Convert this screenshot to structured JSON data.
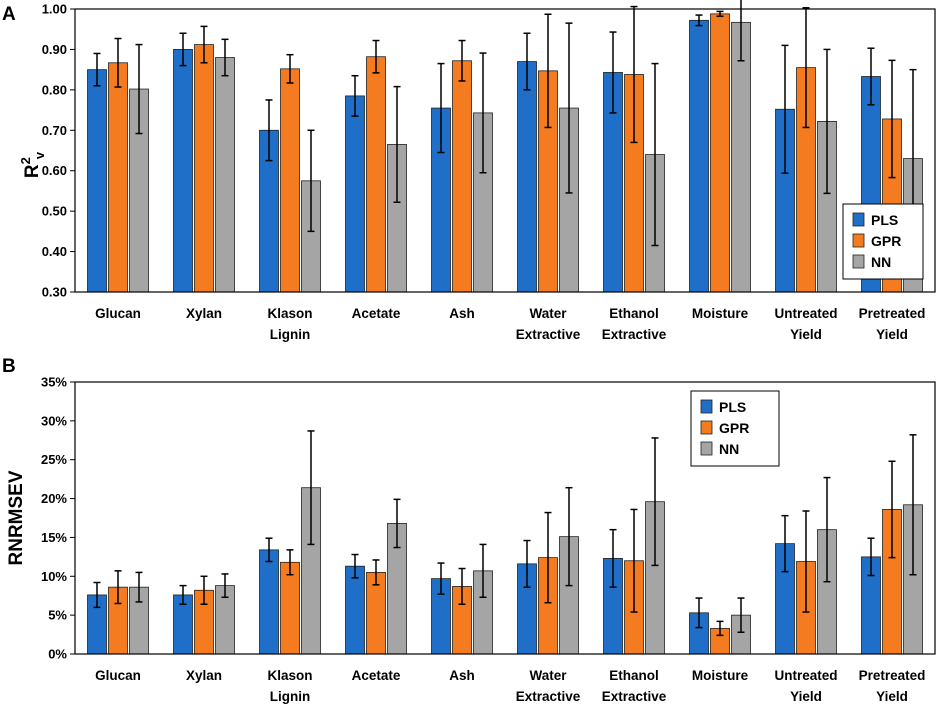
{
  "colors": {
    "PLS": "#1f6fc8",
    "GPR": "#f47b20",
    "NN": "#a5a5a5"
  },
  "chart_data": [
    {
      "panel": "A",
      "type": "bar",
      "ylabel_main": "R",
      "ylabel_sup": "2",
      "ylabel_sub": "v",
      "ylim": [
        0.3,
        1.0
      ],
      "yticks": [
        "0.30",
        "0.40",
        "0.50",
        "0.60",
        "0.70",
        "0.80",
        "0.90",
        "1.00"
      ],
      "ytick_values": [
        0.3,
        0.4,
        0.5,
        0.6,
        0.7,
        0.8,
        0.9,
        1.0
      ],
      "categories": [
        [
          "Glucan"
        ],
        [
          "Xylan"
        ],
        [
          "Klason",
          "Lignin"
        ],
        [
          "Acetate"
        ],
        [
          "Ash"
        ],
        [
          "Water",
          "Extractive"
        ],
        [
          "Ethanol",
          "Extractive"
        ],
        [
          "Moisture"
        ],
        [
          "Untreated",
          "Yield"
        ],
        [
          "Pretreated",
          "Yield"
        ]
      ],
      "legend": [
        "PLS",
        "GPR",
        "NN"
      ],
      "legend_position": "bottom-right",
      "series": [
        {
          "name": "PLS",
          "values": [
            0.85,
            0.9,
            0.7,
            0.785,
            0.755,
            0.87,
            0.843,
            0.972,
            0.752,
            0.833
          ],
          "err": [
            0.04,
            0.04,
            0.075,
            0.05,
            0.11,
            0.07,
            0.1,
            0.013,
            0.158,
            0.07
          ]
        },
        {
          "name": "GPR",
          "values": [
            0.867,
            0.912,
            0.852,
            0.882,
            0.872,
            0.847,
            0.838,
            0.988,
            0.855,
            0.728
          ],
          "err": [
            0.06,
            0.045,
            0.035,
            0.04,
            0.05,
            0.14,
            0.168,
            0.006,
            0.148,
            0.145
          ]
        },
        {
          "name": "NN",
          "values": [
            0.802,
            0.88,
            0.575,
            0.665,
            0.743,
            0.755,
            0.64,
            0.967,
            0.722,
            0.63
          ],
          "err": [
            0.11,
            0.045,
            0.125,
            0.143,
            0.148,
            0.21,
            0.225,
            0.095,
            0.178,
            0.22
          ]
        }
      ]
    },
    {
      "panel": "B",
      "type": "bar",
      "ylabel": "RNRMSEV",
      "ylim": [
        0,
        35
      ],
      "yticks": [
        "0%",
        "5%",
        "10%",
        "15%",
        "20%",
        "25%",
        "30%",
        "35%"
      ],
      "ytick_values": [
        0,
        5,
        10,
        15,
        20,
        25,
        30,
        35
      ],
      "categories": [
        [
          "Glucan"
        ],
        [
          "Xylan"
        ],
        [
          "Klason",
          "Lignin"
        ],
        [
          "Acetate"
        ],
        [
          "Ash"
        ],
        [
          "Water",
          "Extractive"
        ],
        [
          "Ethanol",
          "Extractive"
        ],
        [
          "Moisture"
        ],
        [
          "Untreated",
          "Yield"
        ],
        [
          "Pretreated",
          "Yield"
        ]
      ],
      "legend": [
        "PLS",
        "GPR",
        "NN"
      ],
      "legend_position": "top-center",
      "series": [
        {
          "name": "PLS",
          "values": [
            7.6,
            7.6,
            13.4,
            11.3,
            9.7,
            11.6,
            12.3,
            5.3,
            14.2,
            12.5
          ],
          "err": [
            1.6,
            1.2,
            1.5,
            1.5,
            2.0,
            3.0,
            3.7,
            1.9,
            3.6,
            2.4
          ]
        },
        {
          "name": "GPR",
          "values": [
            8.6,
            8.2,
            11.8,
            10.5,
            8.7,
            12.4,
            12.0,
            3.3,
            11.9,
            18.6
          ],
          "err": [
            2.1,
            1.8,
            1.6,
            1.6,
            2.3,
            5.8,
            6.6,
            0.9,
            6.5,
            6.2
          ]
        },
        {
          "name": "NN",
          "values": [
            8.6,
            8.8,
            21.4,
            16.8,
            10.7,
            15.1,
            19.6,
            5.0,
            16.0,
            19.2
          ],
          "err": [
            1.9,
            1.5,
            7.3,
            3.1,
            3.4,
            6.3,
            8.2,
            2.2,
            6.7,
            9.0
          ]
        }
      ]
    }
  ]
}
